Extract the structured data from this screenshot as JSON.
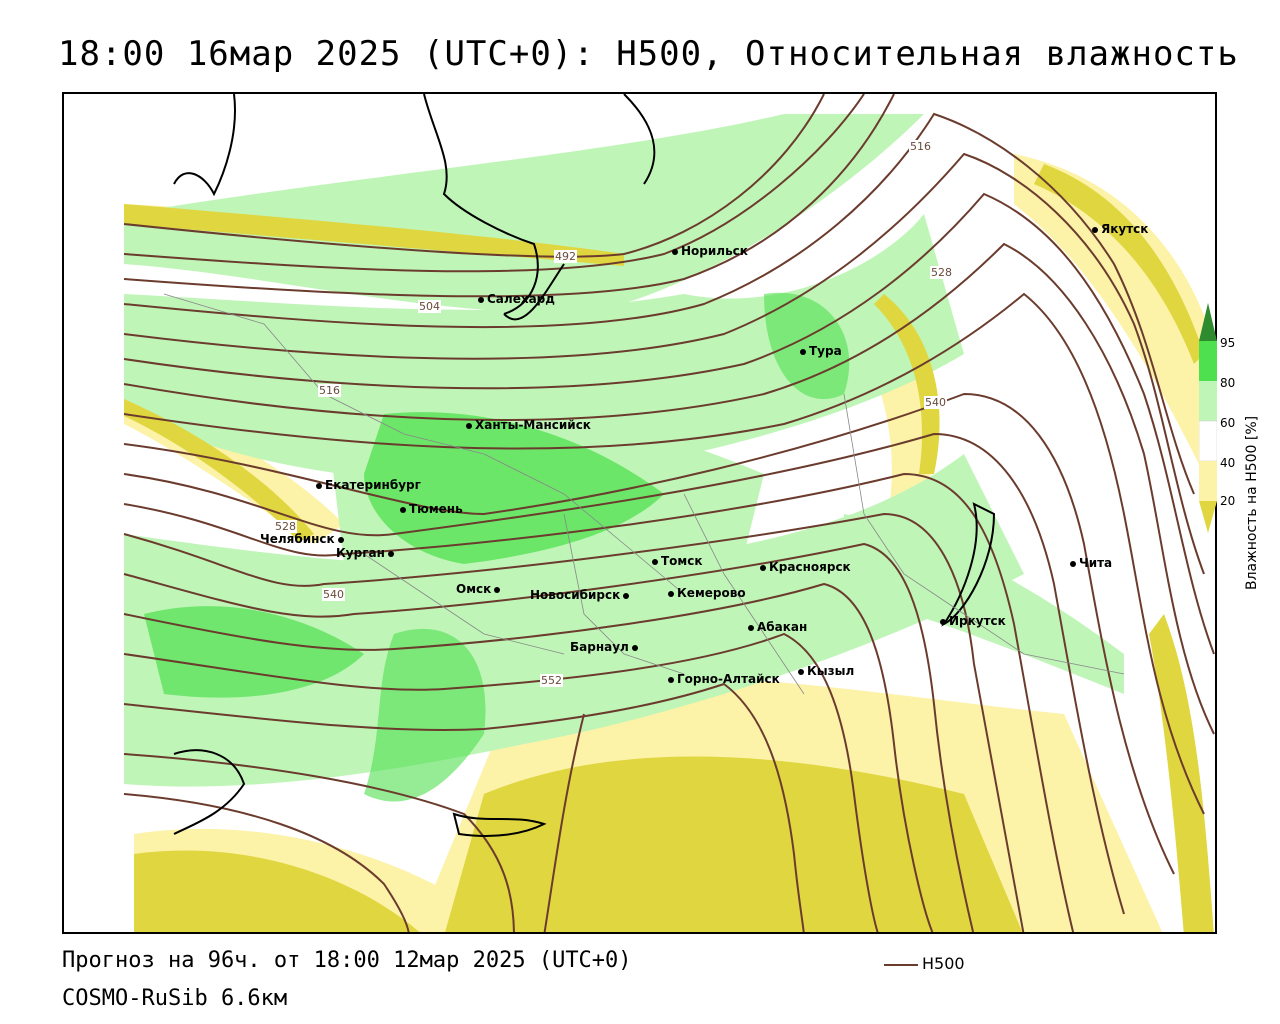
{
  "title": "18:00 16мар 2025 (UTC+0): H500, Относительная влажность",
  "footer": {
    "forecast": "Прогноз на 96ч. от 18:00 12мар 2025 (UTC+0)",
    "model": "COSMO-RuSib 6.6км"
  },
  "legend": {
    "line_label": "H500",
    "line_color": "#6b3c2e"
  },
  "colorbar": {
    "title": "Влажность на H500 [%]",
    "ticks": [
      "95",
      "80",
      "60",
      "40",
      "20"
    ],
    "colors": [
      "#2e8b2e",
      "#4fe04f",
      "#c0f5b8",
      "#ffffff",
      "#fcf2a8",
      "#e0d640"
    ]
  },
  "contour_labels": [
    "516",
    "528",
    "540",
    "492",
    "504",
    "516",
    "528",
    "540",
    "552"
  ],
  "cities": [
    "Норильск",
    "Якутск",
    "Салехард",
    "Тура",
    "Ханты-Мансийск",
    "Екатеринбург",
    "Тюмень",
    "Челябинск",
    "Курган",
    "Омск",
    "Новосибирск",
    "Томск",
    "Красноярск",
    "Кемерово",
    "Абакан",
    "Барнаул",
    "Горно-Алтайск",
    "Кызыл",
    "Иркутск",
    "Чита"
  ]
}
